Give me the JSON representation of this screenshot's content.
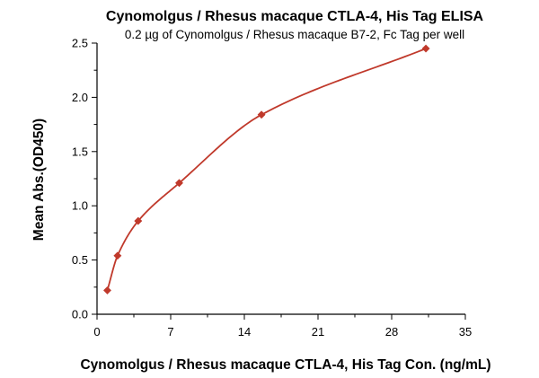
{
  "chart_data": {
    "type": "scatter",
    "title": "Cynomolgus / Rhesus macaque CTLA-4, His Tag ELISA",
    "subtitle": "0.2 µg of Cynomolgus / Rhesus macaque B7-2, Fc Tag per well",
    "xlabel": "Cynomolgus / Rhesus macaque CTLA-4, His Tag Con. (ng/mL)",
    "ylabel": "Mean Abs.(OD450)",
    "xlim": [
      0,
      35
    ],
    "ylim": [
      0,
      2.5
    ],
    "xticks": [
      "0",
      "7",
      "14",
      "21",
      "28",
      "35"
    ],
    "yticks": [
      "0.0",
      "0.5",
      "1.0",
      "1.5",
      "2.0",
      "2.5"
    ],
    "grid": false,
    "fit_curve": true,
    "colors": {
      "series": "#c0392b",
      "axis": "#000000"
    },
    "series": [
      {
        "x": [
          0.98,
          1.95,
          3.91,
          7.81,
          15.63,
          31.25
        ],
        "y": [
          0.22,
          0.54,
          0.86,
          1.21,
          1.84,
          2.45
        ]
      }
    ]
  }
}
